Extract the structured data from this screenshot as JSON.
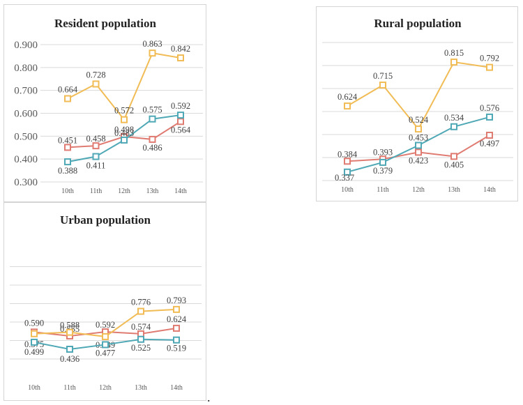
{
  "colors": {
    "red": "#e07b72",
    "yellow": "#f1bc55",
    "teal": "#4fa8b5",
    "grid": "#d9d9d9",
    "text": "#404040",
    "tick": "#595959"
  },
  "chart_data": [
    {
      "type": "line",
      "title": "Resident population",
      "categories": [
        "10th",
        "11th",
        "12th",
        "13th",
        "14th"
      ],
      "ylim": [
        0.3,
        0.9
      ],
      "yticks": [
        "0.300",
        "0.400",
        "0.500",
        "0.600",
        "0.700",
        "0.800",
        "0.900"
      ],
      "show_yaxis": true,
      "series": [
        {
          "color": "red",
          "values": [
            0.451,
            0.458,
            0.498,
            0.486,
            0.564
          ],
          "labels": [
            "0.451",
            "0.458",
            "0.498",
            "0.486",
            "0.564"
          ]
        },
        {
          "color": "yellow",
          "values": [
            0.664,
            0.728,
            0.572,
            0.863,
            0.842
          ],
          "labels": [
            "0.664",
            "0.728",
            "0.572",
            "0.863",
            "0.842"
          ]
        },
        {
          "color": "teal",
          "values": [
            0.388,
            0.411,
            0.483,
            0.575,
            0.592
          ],
          "labels": [
            "0.388",
            "0.411",
            "0.483",
            "0.575",
            "0.592"
          ]
        }
      ]
    },
    {
      "type": "line",
      "title": "Rural population",
      "categories": [
        "10th",
        "11th",
        "12th",
        "13th",
        "14th"
      ],
      "ylim": [
        0.3,
        0.9
      ],
      "show_yaxis": false,
      "series": [
        {
          "color": "red",
          "values": [
            0.384,
            0.393,
            0.423,
            0.405,
            0.497
          ],
          "labels": [
            "0.384",
            "0.393",
            "0.423",
            "0.405",
            "0.497"
          ]
        },
        {
          "color": "yellow",
          "values": [
            0.624,
            0.715,
            0.524,
            0.815,
            0.792
          ],
          "labels": [
            "0.624",
            "0.715",
            "0.524",
            "0.815",
            "0.792"
          ]
        },
        {
          "color": "teal",
          "values": [
            0.337,
            0.379,
            0.453,
            0.534,
            0.576
          ],
          "labels": [
            "0.337",
            "0.379",
            "0.453",
            "0.534",
            "0.576"
          ]
        }
      ]
    },
    {
      "type": "line",
      "title": "Urban population",
      "categories": [
        "10th",
        "11th",
        "12th",
        "13th",
        "14th"
      ],
      "ylim": [
        0.3,
        0.9
      ],
      "show_yaxis": false,
      "series": [
        {
          "color": "red",
          "values": [
            0.59,
            0.555,
            0.592,
            0.574,
            0.624
          ],
          "labels": [
            "0.590",
            "0.555",
            "0.592",
            "0.574",
            "0.624"
          ]
        },
        {
          "color": "yellow",
          "values": [
            0.575,
            0.588,
            0.549,
            0.776,
            0.793
          ],
          "labels": [
            "0.575",
            "0.588",
            "0.549",
            "0.776",
            "0.793"
          ]
        },
        {
          "color": "teal",
          "values": [
            0.499,
            0.436,
            0.477,
            0.525,
            0.519
          ],
          "labels": [
            "0.499",
            "0.436",
            "0.477",
            "0.525",
            "0.519"
          ]
        }
      ]
    }
  ],
  "trailing_mark": "."
}
